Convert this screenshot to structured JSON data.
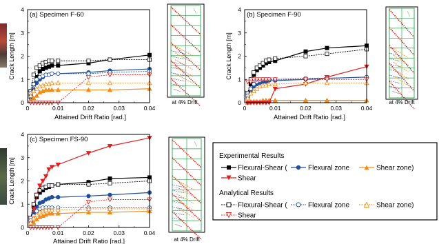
{
  "colors": {
    "flex_shear": "#000000",
    "flexural": "#1f4e9c",
    "shear_zone": "#f08c1a",
    "shear": "#e02020",
    "grid_green": "#2aa84a",
    "crack_red": "#d81b1b"
  },
  "common": {
    "xlabel": "Attained Drift Ratio [rad.]",
    "ylabel": "Crack Length [m]",
    "drift_label": "at 4% Drift",
    "xticks": [
      "0",
      "0.01",
      "0.02",
      "0.03",
      "0.04"
    ],
    "yticks": [
      "0",
      "1",
      "2",
      "3",
      "4"
    ]
  },
  "legend": {
    "exp_title": "Experimental Results",
    "exp_flex_shear": "Flexural-Shear (",
    "exp_flexural": "Flexural zone",
    "exp_shear_zone": "Shear zone)",
    "exp_shear": "Shear",
    "ana_title": "Analytical Results",
    "ana_flex_shear": "Flexural-Shear (",
    "ana_flexural": "Flexural zone",
    "ana_shear_zone": "Shear zone)",
    "ana_shear": "Shear"
  },
  "chart_data": [
    {
      "type": "line",
      "title": "(a) Specimen F-60",
      "xlabel": "Attained Drift Ratio [rad.]",
      "ylabel": "Crack Length [m]",
      "xlim": [
        0,
        0.04
      ],
      "ylim": [
        0,
        4
      ],
      "x": [
        0.001,
        0.002,
        0.003,
        0.004,
        0.005,
        0.006,
        0.007,
        0.008,
        0.01,
        0.02,
        0.027,
        0.04
      ],
      "series": [
        {
          "key": "exp_flex_shear",
          "values": [
            0.3,
            0.8,
            1.1,
            1.35,
            1.45,
            1.5,
            1.55,
            1.6,
            1.6,
            1.7,
            1.85,
            2.05
          ]
        },
        {
          "key": "exp_flexural",
          "values": [
            0.2,
            0.55,
            0.85,
            1.0,
            1.1,
            1.2,
            1.2,
            1.25,
            1.25,
            1.3,
            1.38,
            1.45
          ]
        },
        {
          "key": "exp_shear_zone",
          "values": [
            0.1,
            0.2,
            0.3,
            0.45,
            0.5,
            0.55,
            0.55,
            0.55,
            0.55,
            0.55,
            0.55,
            0.6
          ]
        },
        {
          "key": "ana_flex_shear",
          "values": [
            0.5,
            1.2,
            1.5,
            1.6,
            1.7,
            1.75,
            1.8,
            1.8,
            1.8,
            1.8,
            1.85,
            1.85
          ]
        },
        {
          "key": "ana_flexural",
          "values": [
            0.4,
            0.8,
            1.0,
            1.1,
            1.15,
            1.2,
            1.2,
            1.25,
            1.25,
            1.25,
            1.3,
            1.35
          ]
        },
        {
          "key": "ana_shear_zone",
          "values": [
            0.3,
            0.5,
            0.6,
            0.7,
            0.75,
            0.8,
            0.8,
            0.85,
            0.85,
            0.85,
            0.85,
            0.85
          ]
        },
        {
          "key": "ana_shear",
          "values": [
            0,
            0,
            0,
            0,
            0,
            0,
            0,
            0,
            0,
            1.1,
            1.2,
            1.2
          ]
        }
      ]
    },
    {
      "type": "line",
      "title": "(b) Specimen F-90",
      "xlabel": "Attained Drift Ratio [rad.]",
      "ylabel": "Crack Length [m]",
      "xlim": [
        0,
        0.04
      ],
      "ylim": [
        0,
        4
      ],
      "x": [
        0.001,
        0.002,
        0.003,
        0.004,
        0.005,
        0.006,
        0.007,
        0.008,
        0.01,
        0.02,
        0.027,
        0.04
      ],
      "series": [
        {
          "key": "exp_flex_shear",
          "values": [
            0.3,
            0.8,
            1.2,
            1.4,
            1.5,
            1.6,
            1.7,
            1.75,
            1.8,
            2.2,
            2.35,
            2.45
          ]
        },
        {
          "key": "exp_flexural",
          "values": [
            0.2,
            0.5,
            0.7,
            0.8,
            0.85,
            0.9,
            0.9,
            0.95,
            0.95,
            1.0,
            1.05,
            1.1
          ]
        },
        {
          "key": "exp_shear_zone",
          "values": [
            0,
            0.05,
            0.05,
            0.05,
            0.05,
            0.1,
            0.1,
            0.1,
            0.1,
            0.1,
            0.1,
            0.1
          ]
        },
        {
          "key": "exp_shear",
          "values": [
            0,
            0,
            0,
            0,
            0,
            0,
            0,
            0,
            0.6,
            0.8,
            1.1,
            1.55
          ]
        },
        {
          "key": "ana_flex_shear",
          "values": [
            0.4,
            1.0,
            1.3,
            1.5,
            1.6,
            1.7,
            1.8,
            1.85,
            1.9,
            2.0,
            2.1,
            2.3
          ]
        },
        {
          "key": "ana_flexural",
          "values": [
            0.3,
            0.6,
            0.8,
            0.9,
            0.95,
            1.0,
            1.0,
            1.0,
            1.0,
            1.05,
            1.05,
            1.1
          ]
        },
        {
          "key": "ana_shear_zone",
          "values": [
            0.2,
            0.4,
            0.5,
            0.6,
            0.7,
            0.75,
            0.75,
            0.8,
            0.8,
            0.85,
            0.85,
            0.85
          ]
        },
        {
          "key": "ana_shear",
          "values": [
            0.9,
            0.9,
            1.0,
            1.0,
            1.0,
            1.0,
            1.0,
            1.0,
            1.0,
            1.0,
            1.0,
            1.0
          ]
        }
      ]
    },
    {
      "type": "line",
      "title": "(c) Specimen FS-90",
      "xlabel": "Attained Drift Ratio [rad.]",
      "ylabel": "Crack Length [m]",
      "xlim": [
        0,
        0.04
      ],
      "ylim": [
        0,
        4
      ],
      "x": [
        0.001,
        0.002,
        0.003,
        0.004,
        0.005,
        0.006,
        0.007,
        0.008,
        0.01,
        0.02,
        0.027,
        0.04
      ],
      "series": [
        {
          "key": "exp_flex_shear",
          "values": [
            0.3,
            0.9,
            1.3,
            1.5,
            1.6,
            1.7,
            1.75,
            1.8,
            1.85,
            1.95,
            2.1,
            2.15
          ]
        },
        {
          "key": "exp_flexural",
          "values": [
            0.2,
            0.6,
            0.9,
            1.05,
            1.1,
            1.2,
            1.25,
            1.3,
            1.3,
            1.35,
            1.4,
            1.5
          ]
        },
        {
          "key": "exp_shear_zone",
          "values": [
            0.1,
            0.2,
            0.35,
            0.45,
            0.5,
            0.55,
            0.6,
            0.6,
            0.6,
            0.65,
            0.65,
            0.7
          ]
        },
        {
          "key": "exp_shear",
          "values": [
            0.2,
            0.8,
            1.4,
            1.8,
            2.0,
            2.2,
            2.5,
            2.6,
            2.7,
            3.2,
            3.5,
            3.85
          ]
        },
        {
          "key": "ana_flex_shear",
          "values": [
            0.4,
            1.0,
            1.4,
            1.6,
            1.7,
            1.75,
            1.8,
            1.8,
            1.85,
            1.85,
            1.9,
            2.0
          ]
        },
        {
          "key": "ana_flexural",
          "values": [
            0.3,
            0.5,
            0.7,
            0.8,
            0.85,
            0.85,
            0.85,
            0.85,
            0.85,
            0.85,
            0.85,
            0.85
          ]
        },
        {
          "key": "ana_shear_zone",
          "values": [
            0.2,
            0.4,
            0.55,
            0.65,
            0.7,
            0.75,
            0.75,
            0.75,
            0.75,
            0.8,
            0.8,
            0.8
          ]
        },
        {
          "key": "ana_shear",
          "values": [
            0,
            0,
            0,
            0,
            0,
            0,
            0,
            0,
            0,
            1.1,
            1.2,
            1.2
          ]
        }
      ]
    }
  ]
}
